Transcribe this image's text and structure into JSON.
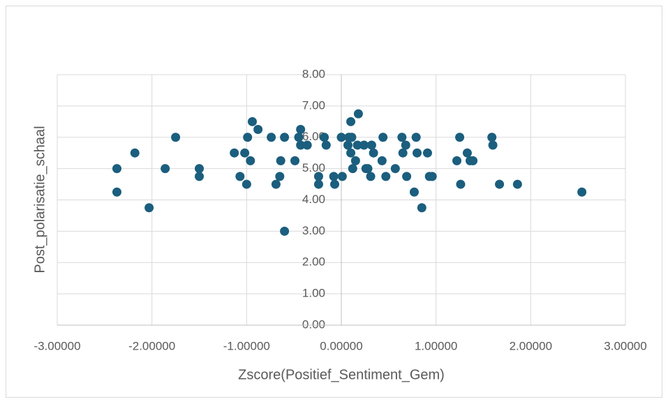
{
  "chart_data": {
    "type": "scatter",
    "x_label": "Zscore(Positief_Sentiment_Gem)",
    "y_label": "Post_polarisatie_schaal",
    "color": "#1b5e7e",
    "grid": true,
    "x": [
      -2.37,
      -2.37,
      -2.18,
      -2.03,
      -1.86,
      -1.75,
      -1.5,
      -1.5,
      -1.13,
      -1.07,
      -1.02,
      -1.0,
      -0.99,
      -0.96,
      -0.94,
      -0.88,
      -0.74,
      -0.69,
      -0.65,
      -0.64,
      -0.6,
      -0.6,
      -0.49,
      -0.45,
      -0.43,
      -0.43,
      -0.36,
      -0.24,
      -0.24,
      -0.18,
      -0.16,
      -0.08,
      -0.07,
      0.0,
      0.01,
      0.07,
      0.08,
      0.1,
      0.1,
      0.11,
      0.12,
      0.15,
      0.17,
      0.18,
      0.24,
      0.26,
      0.28,
      0.32,
      0.31,
      0.34,
      0.43,
      0.44,
      0.47,
      0.57,
      0.64,
      0.65,
      0.68,
      0.69,
      0.77,
      0.79,
      0.8,
      0.85,
      0.91,
      0.93,
      0.96,
      1.22,
      1.25,
      1.26,
      1.33,
      1.36,
      1.39,
      1.59,
      1.6,
      1.67,
      1.86,
      2.54
    ],
    "values": [
      5.0,
      4.25,
      5.5,
      3.75,
      5.0,
      6.0,
      5.0,
      4.75,
      5.5,
      4.75,
      5.5,
      4.5,
      6.0,
      5.25,
      6.5,
      6.25,
      6.0,
      4.5,
      4.75,
      5.25,
      6.0,
      3.0,
      5.25,
      6.0,
      6.25,
      5.75,
      5.75,
      4.5,
      4.75,
      6.0,
      5.75,
      4.75,
      4.5,
      6.0,
      4.75,
      5.75,
      6.0,
      5.5,
      6.5,
      6.0,
      5.0,
      5.25,
      5.75,
      6.75,
      5.75,
      5.0,
      5.0,
      5.75,
      4.75,
      5.5,
      5.25,
      6.0,
      4.75,
      5.0,
      6.0,
      5.5,
      5.75,
      4.75,
      4.25,
      6.0,
      5.5,
      3.75,
      5.5,
      4.75,
      4.75,
      5.25,
      6.0,
      4.5,
      5.5,
      5.25,
      5.25,
      6.0,
      5.75,
      4.5,
      4.5,
      4.25
    ],
    "xlim": [
      -3,
      3
    ],
    "xticks": [
      {
        "value": -3,
        "label": "-3.00000"
      },
      {
        "value": -2,
        "label": "-2.00000"
      },
      {
        "value": -1,
        "label": "-1.00000"
      },
      {
        "value": 0,
        "label": "0.00000"
      },
      {
        "value": 1,
        "label": "1.00000"
      },
      {
        "value": 2,
        "label": "2.00000"
      },
      {
        "value": 3,
        "label": "3.00000"
      }
    ],
    "ylim": [
      0,
      8
    ],
    "yticks": [
      {
        "value": 0,
        "label": "0.00"
      },
      {
        "value": 1,
        "label": "1.00"
      },
      {
        "value": 2,
        "label": "2.00"
      },
      {
        "value": 3,
        "label": "3.00"
      },
      {
        "value": 4,
        "label": "4.00"
      },
      {
        "value": 5,
        "label": "5.00"
      },
      {
        "value": 6,
        "label": "6.00"
      },
      {
        "value": 7,
        "label": "7.00"
      },
      {
        "value": 8,
        "label": "8.00"
      }
    ]
  }
}
